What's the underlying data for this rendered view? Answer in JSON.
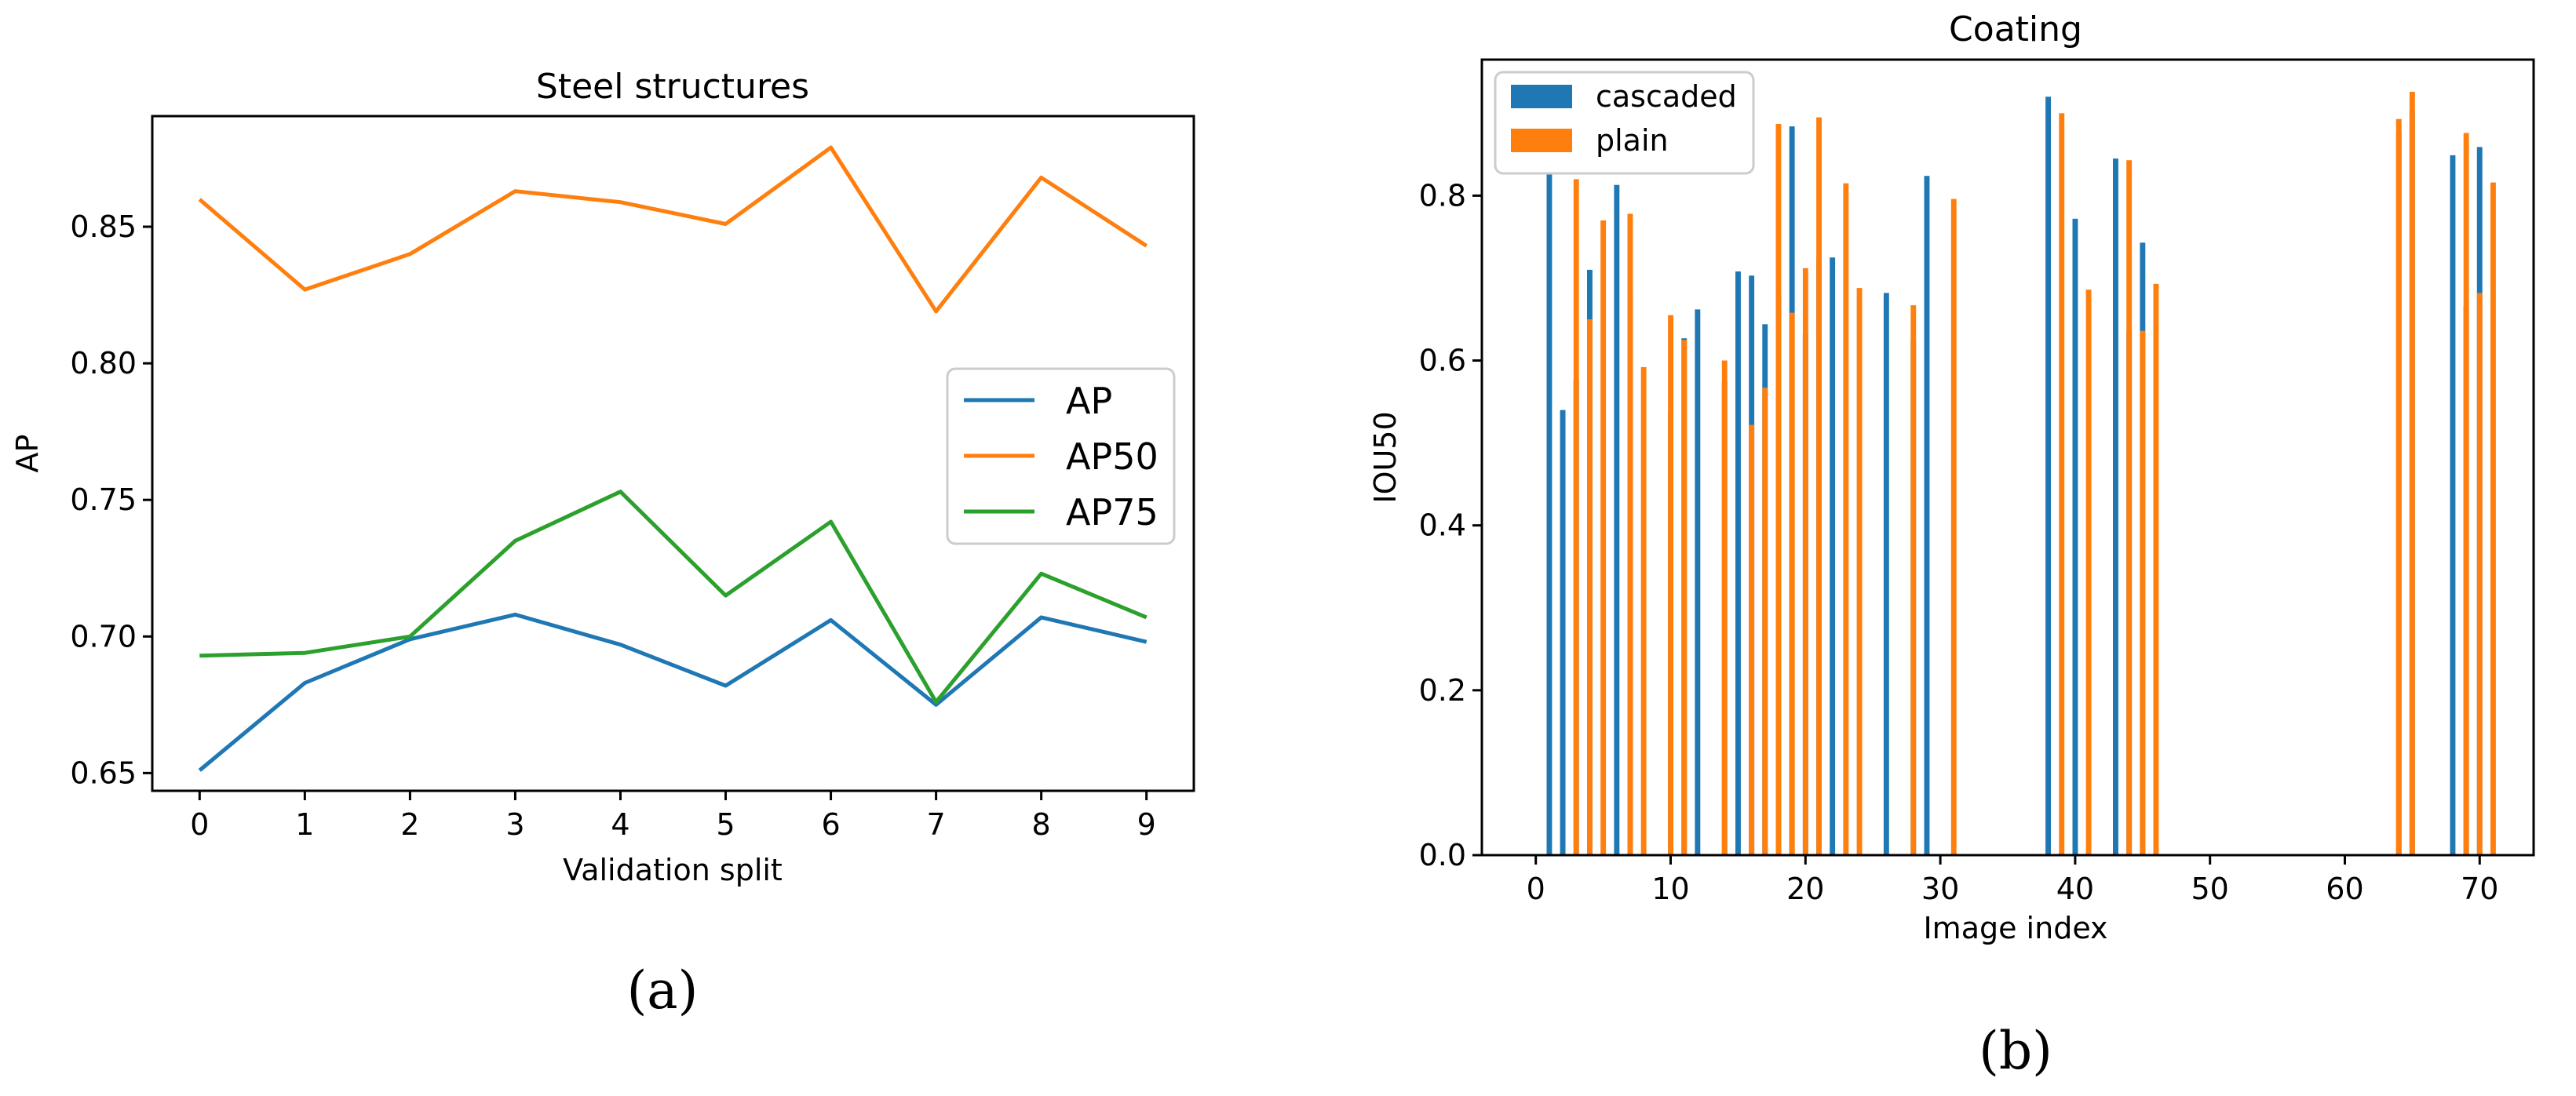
{
  "chart_data": [
    {
      "type": "line",
      "panel_label": "(a)",
      "title": "Steel structures",
      "xlabel": "Validation split",
      "ylabel": "AP",
      "x": [
        0,
        1,
        2,
        3,
        4,
        5,
        6,
        7,
        8,
        9
      ],
      "xticks": [
        "0",
        "1",
        "2",
        "3",
        "4",
        "5",
        "6",
        "7",
        "8",
        "9"
      ],
      "yticks": [
        "0.65",
        "0.70",
        "0.75",
        "0.80",
        "0.85"
      ],
      "xlim": [
        -0.45,
        9.45
      ],
      "ylim": [
        0.6435,
        0.8905
      ],
      "grid": false,
      "legend": "center-right",
      "series": [
        {
          "name": "AP",
          "color": "#1f77b4",
          "values": [
            0.651,
            0.683,
            0.699,
            0.708,
            0.697,
            0.682,
            0.706,
            0.675,
            0.707,
            0.698
          ]
        },
        {
          "name": "AP50",
          "color": "#ff7f0e",
          "values": [
            0.86,
            0.827,
            0.84,
            0.863,
            0.859,
            0.851,
            0.879,
            0.819,
            0.868,
            0.843
          ]
        },
        {
          "name": "AP75",
          "color": "#2ca02c",
          "values": [
            0.693,
            0.694,
            0.7,
            0.735,
            0.753,
            0.715,
            0.742,
            0.676,
            0.723,
            0.707
          ]
        }
      ]
    },
    {
      "type": "bar",
      "panel_label": "(b)",
      "title": "Coating",
      "xlabel": "Image index",
      "ylabel": "IOU50",
      "xticks": [
        "0",
        "10",
        "20",
        "30",
        "40",
        "50",
        "60",
        "70"
      ],
      "yticks": [
        "0.0",
        "0.2",
        "0.4",
        "0.6",
        "0.8"
      ],
      "xlim": [
        -4,
        74
      ],
      "ylim": [
        0,
        0.965
      ],
      "grid": false,
      "legend": "top-left",
      "bar_width": 0.4,
      "series": [
        {
          "name": "cascaded",
          "color": "#1f77b4",
          "points": [
            [
              1,
              0.84
            ],
            [
              2,
              0.54
            ],
            [
              3,
              0.576
            ],
            [
              4,
              0.71
            ],
            [
              6,
              0.813
            ],
            [
              7,
              0.68
            ],
            [
              10,
              0.536
            ],
            [
              11,
              0.627
            ],
            [
              12,
              0.662
            ],
            [
              14,
              0.574
            ],
            [
              15,
              0.708
            ],
            [
              16,
              0.703
            ],
            [
              17,
              0.644
            ],
            [
              18,
              0.68
            ],
            [
              19,
              0.884
            ],
            [
              20,
              0.632
            ],
            [
              21,
              0.725
            ],
            [
              22,
              0.725
            ],
            [
              26,
              0.682
            ],
            [
              28,
              0.624
            ],
            [
              29,
              0.824
            ],
            [
              38,
              0.92
            ],
            [
              40,
              0.772
            ],
            [
              43,
              0.845
            ],
            [
              44,
              0.635
            ],
            [
              45,
              0.743
            ],
            [
              64,
              0.877
            ],
            [
              65,
              0.903
            ],
            [
              68,
              0.849
            ],
            [
              69,
              0.666
            ],
            [
              70,
              0.859
            ]
          ]
        },
        {
          "name": "plain",
          "color": "#ff7f0e",
          "points": [
            [
              3,
              0.82
            ],
            [
              4,
              0.65
            ],
            [
              5,
              0.77
            ],
            [
              7,
              0.778
            ],
            [
              8,
              0.592
            ],
            [
              10,
              0.655
            ],
            [
              11,
              0.625
            ],
            [
              14,
              0.6
            ],
            [
              16,
              0.522
            ],
            [
              17,
              0.567
            ],
            [
              18,
              0.887
            ],
            [
              19,
              0.658
            ],
            [
              20,
              0.712
            ],
            [
              21,
              0.895
            ],
            [
              23,
              0.815
            ],
            [
              24,
              0.688
            ],
            [
              28,
              0.667
            ],
            [
              31,
              0.796
            ],
            [
              39,
              0.9
            ],
            [
              41,
              0.686
            ],
            [
              44,
              0.843
            ],
            [
              45,
              0.636
            ],
            [
              46,
              0.693
            ],
            [
              64,
              0.893
            ],
            [
              65,
              0.926
            ],
            [
              69,
              0.876
            ],
            [
              70,
              0.682
            ],
            [
              71,
              0.816
            ]
          ]
        }
      ]
    }
  ]
}
